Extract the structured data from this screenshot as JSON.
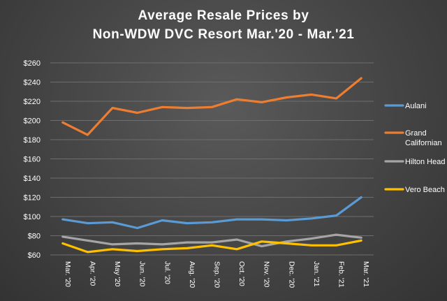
{
  "chart_data": {
    "type": "line",
    "title_lines": [
      "Average Resale Prices by",
      "Non-WDW  DVC Resort Mar.'20  - Mar.'21"
    ],
    "categories": [
      "Mar. '20",
      "Apr. '20",
      "May '20",
      "Jun. '20",
      "Jul. '20",
      "Aug. '20",
      "Sep. '20",
      "Oct. '20",
      "Nov. '20",
      "Dec. '20",
      "Jan. '21",
      "Feb. '21",
      "Mar. '21"
    ],
    "ylim": [
      60,
      260
    ],
    "yticks": [
      60,
      80,
      100,
      120,
      140,
      160,
      180,
      200,
      220,
      240,
      260
    ],
    "ytick_labels": [
      "$60",
      "$80",
      "$100",
      "$120",
      "$140",
      "$160",
      "$180",
      "$200",
      "$220",
      "$240",
      "$260"
    ],
    "grid": true,
    "legend_position": "right",
    "series": [
      {
        "name": "Aulani",
        "legend_lines": [
          "Aulani"
        ],
        "color": "#5b9bd5",
        "values": [
          97,
          93,
          94,
          88,
          96,
          93,
          94,
          97,
          97,
          96,
          98,
          101,
          120
        ]
      },
      {
        "name": "Grand Californian",
        "legend_lines": [
          "Grand",
          "Californian"
        ],
        "color": "#ed7d31",
        "values": [
          198,
          185,
          213,
          208,
          214,
          213,
          214,
          222,
          219,
          224,
          227,
          223,
          244
        ]
      },
      {
        "name": "Hilton Head",
        "legend_lines": [
          "Hilton Head"
        ],
        "color": "#a5a5a5",
        "values": [
          79,
          75,
          71,
          72,
          71,
          73,
          73,
          76,
          69,
          74,
          77,
          81,
          78
        ]
      },
      {
        "name": "Vero Beach",
        "legend_lines": [
          "Vero Beach"
        ],
        "color": "#ffc000",
        "values": [
          72,
          63,
          66,
          64,
          66,
          67,
          70,
          66,
          74,
          72,
          70,
          70,
          75
        ]
      }
    ]
  }
}
